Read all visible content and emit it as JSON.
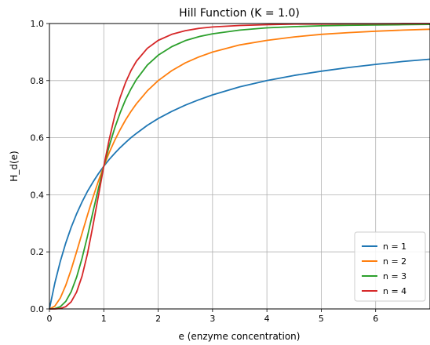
{
  "chart_data": {
    "type": "line",
    "title": "Hill Function (K = 1.0)",
    "xlabel": "e (enzyme concentration)",
    "ylabel": "H_d(e)",
    "xlim": [
      0,
      7
    ],
    "ylim": [
      0,
      1.0
    ],
    "x_ticks": [
      "0",
      "1",
      "2",
      "3",
      "4",
      "5",
      "6"
    ],
    "y_ticks": [
      "0.0",
      "0.2",
      "0.4",
      "0.6",
      "0.8",
      "1.0"
    ],
    "grid": true,
    "legend_position": "lower-right",
    "x": [
      0,
      0.1,
      0.2,
      0.3,
      0.4,
      0.5,
      0.6,
      0.7,
      0.8,
      0.9,
      1.0,
      1.1,
      1.2,
      1.3,
      1.4,
      1.5,
      1.6,
      1.8,
      2.0,
      2.25,
      2.5,
      2.75,
      3.0,
      3.5,
      4.0,
      4.5,
      5.0,
      5.5,
      6.0,
      6.5,
      7.0
    ],
    "series": [
      {
        "name": "n = 1",
        "color": "#1f77b4",
        "values": [
          0,
          0.091,
          0.167,
          0.231,
          0.286,
          0.333,
          0.375,
          0.412,
          0.444,
          0.474,
          0.5,
          0.524,
          0.545,
          0.565,
          0.583,
          0.6,
          0.615,
          0.643,
          0.667,
          0.692,
          0.714,
          0.733,
          0.75,
          0.778,
          0.8,
          0.818,
          0.833,
          0.846,
          0.857,
          0.867,
          0.875
        ]
      },
      {
        "name": "n = 2",
        "color": "#ff7f0e",
        "values": [
          0,
          0.0099,
          0.0385,
          0.0826,
          0.138,
          0.2,
          0.265,
          0.329,
          0.39,
          0.448,
          0.5,
          0.548,
          0.59,
          0.628,
          0.662,
          0.692,
          0.719,
          0.764,
          0.8,
          0.835,
          0.862,
          0.883,
          0.9,
          0.925,
          0.941,
          0.953,
          0.962,
          0.968,
          0.973,
          0.977,
          0.98
        ]
      },
      {
        "name": "n = 3",
        "color": "#2ca02c",
        "values": [
          0,
          0.001,
          0.0079,
          0.0263,
          0.0602,
          0.111,
          0.178,
          0.255,
          0.339,
          0.422,
          0.5,
          0.571,
          0.633,
          0.687,
          0.733,
          0.771,
          0.804,
          0.854,
          0.889,
          0.919,
          0.94,
          0.954,
          0.964,
          0.977,
          0.985,
          0.989,
          0.992,
          0.994,
          0.995,
          0.996,
          0.997
        ]
      },
      {
        "name": "n = 4",
        "color": "#d62728",
        "values": [
          0,
          0.0001,
          0.0016,
          0.008,
          0.025,
          0.0588,
          0.115,
          0.194,
          0.291,
          0.396,
          0.5,
          0.594,
          0.675,
          0.741,
          0.793,
          0.835,
          0.868,
          0.913,
          0.941,
          0.962,
          0.975,
          0.983,
          0.988,
          0.993,
          0.996,
          0.998,
          0.998,
          0.999,
          0.999,
          0.9994,
          0.9996
        ]
      }
    ]
  }
}
